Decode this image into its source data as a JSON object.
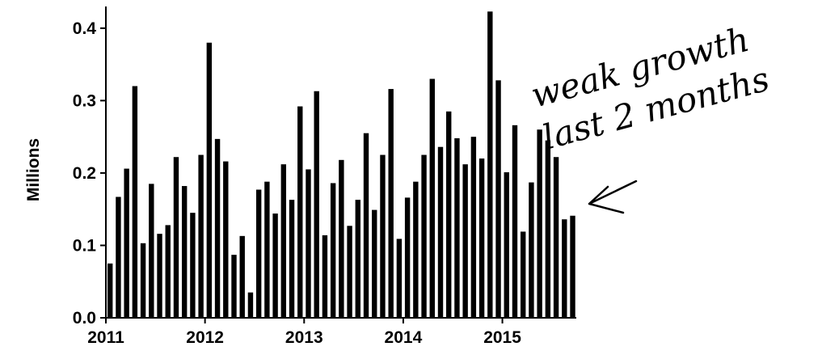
{
  "chart_data": {
    "type": "bar",
    "ylabel": "Millions",
    "xlabel": "",
    "title": "",
    "ylim": [
      0,
      0.43
    ],
    "yticks": [
      "0.0",
      "0.1",
      "0.2",
      "0.3",
      "0.4"
    ],
    "xticks": [
      "2011",
      "2012",
      "2013",
      "2014",
      "2015"
    ],
    "grid": false,
    "x_start": "2011-01",
    "categories": [
      "2011-01",
      "2011-02",
      "2011-03",
      "2011-04",
      "2011-05",
      "2011-06",
      "2011-07",
      "2011-08",
      "2011-09",
      "2011-10",
      "2011-11",
      "2011-12",
      "2012-01",
      "2012-02",
      "2012-03",
      "2012-04",
      "2012-05",
      "2012-06",
      "2012-07",
      "2012-08",
      "2012-09",
      "2012-10",
      "2012-11",
      "2012-12",
      "2013-01",
      "2013-02",
      "2013-03",
      "2013-04",
      "2013-05",
      "2013-06",
      "2013-07",
      "2013-08",
      "2013-09",
      "2013-10",
      "2013-11",
      "2013-12",
      "2014-01",
      "2014-02",
      "2014-03",
      "2014-04",
      "2014-05",
      "2014-06",
      "2014-07",
      "2014-08",
      "2014-09",
      "2014-10",
      "2014-11",
      "2014-12",
      "2015-01",
      "2015-02",
      "2015-03",
      "2015-04",
      "2015-05",
      "2015-06",
      "2015-07",
      "2015-08",
      "2015-09"
    ],
    "values": [
      0.075,
      0.167,
      0.206,
      0.32,
      0.103,
      0.185,
      0.116,
      0.128,
      0.222,
      0.182,
      0.145,
      0.225,
      0.38,
      0.247,
      0.216,
      0.087,
      0.113,
      0.035,
      0.177,
      0.188,
      0.144,
      0.212,
      0.163,
      0.292,
      0.205,
      0.313,
      0.114,
      0.186,
      0.218,
      0.127,
      0.163,
      0.255,
      0.149,
      0.225,
      0.316,
      0.109,
      0.166,
      0.188,
      0.225,
      0.33,
      0.236,
      0.285,
      0.248,
      0.212,
      0.25,
      0.22,
      0.423,
      0.328,
      0.201,
      0.266,
      0.119,
      0.187,
      0.26,
      0.245,
      0.222,
      0.136,
      0.141
    ],
    "annotations": [
      {
        "text": "weak growth",
        "style": "handwritten"
      },
      {
        "text": "last 2 months",
        "style": "handwritten"
      }
    ]
  }
}
